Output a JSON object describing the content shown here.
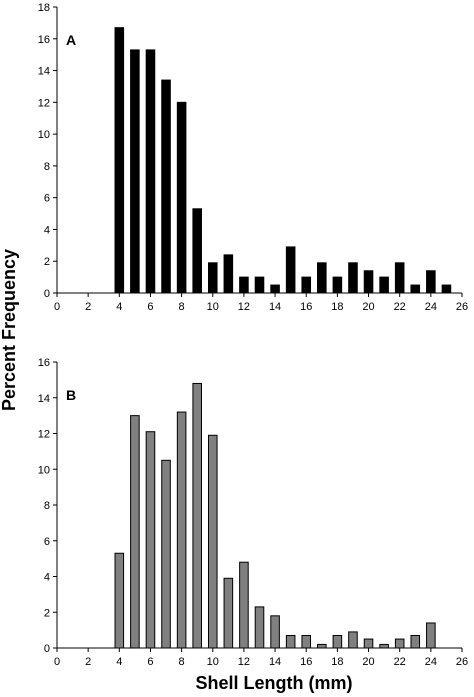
{
  "figure": {
    "ylabel": "Percent Frequency",
    "xlabel": "Shell Length (mm)"
  },
  "chart_data": [
    {
      "type": "bar",
      "panel_label": "A",
      "x": [
        4,
        5,
        6,
        7,
        8,
        9,
        10,
        11,
        12,
        13,
        14,
        15,
        16,
        17,
        18,
        19,
        20,
        21,
        22,
        23,
        24,
        25
      ],
      "values": [
        16.7,
        15.3,
        15.3,
        13.4,
        12.0,
        5.3,
        1.9,
        2.4,
        1.0,
        1.0,
        0.5,
        2.9,
        1.0,
        1.9,
        1.0,
        1.9,
        1.4,
        1.0,
        1.9,
        0.5,
        1.4,
        0.5
      ],
      "bar_color": "#000000",
      "xlim": [
        0,
        26
      ],
      "ylim": [
        0,
        18
      ],
      "xticks": [
        0,
        2,
        4,
        6,
        8,
        10,
        12,
        14,
        16,
        18,
        20,
        22,
        24,
        26
      ],
      "yticks": [
        0,
        2,
        4,
        6,
        8,
        10,
        12,
        14,
        16,
        18
      ],
      "grid": false
    },
    {
      "type": "bar",
      "panel_label": "B",
      "x": [
        4,
        5,
        6,
        7,
        8,
        9,
        10,
        11,
        12,
        13,
        14,
        15,
        16,
        17,
        18,
        19,
        20,
        21,
        22,
        23,
        24
      ],
      "values": [
        5.3,
        13.0,
        12.1,
        10.5,
        13.2,
        14.8,
        11.9,
        3.9,
        4.8,
        2.3,
        1.8,
        0.7,
        0.7,
        0.2,
        0.7,
        0.9,
        0.5,
        0.2,
        0.5,
        0.7,
        1.4
      ],
      "bar_color": "#808080",
      "xlim": [
        0,
        26
      ],
      "ylim": [
        0,
        16
      ],
      "xticks": [
        0,
        2,
        4,
        6,
        8,
        10,
        12,
        14,
        16,
        18,
        20,
        22,
        24,
        26
      ],
      "yticks": [
        0,
        2,
        4,
        6,
        8,
        10,
        12,
        14,
        16
      ],
      "grid": false
    }
  ]
}
